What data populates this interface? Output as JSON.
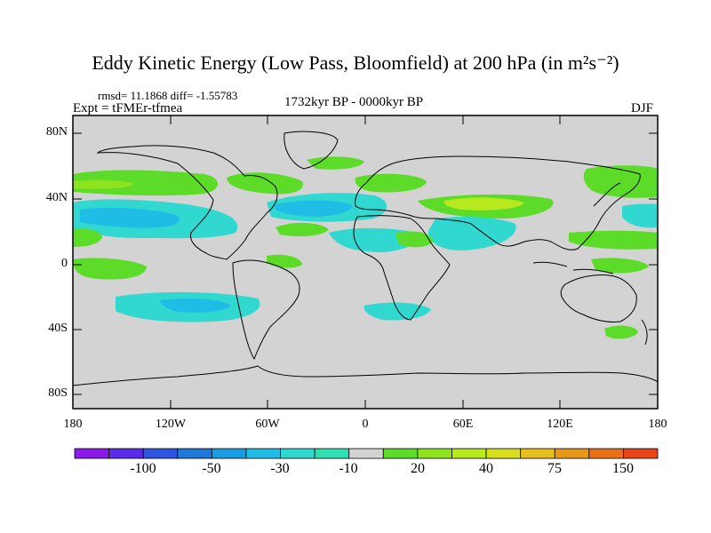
{
  "title": "Eddy Kinetic Energy (Low Pass, Bloomfield) at 200 hPa (in m²s⁻²)",
  "stats": "rmsd= 11.1868 diff= -1.55783",
  "experiment": "Expt = tFMEr-tfmea",
  "period": "1732kyr BP - 0000kyr BP",
  "season": "DJF",
  "axes": {
    "lat_labels": [
      "80N",
      "40N",
      "0",
      "40S",
      "80S"
    ],
    "lon_labels": [
      "180",
      "120W",
      "60W",
      "0",
      "60E",
      "120E",
      "180"
    ]
  },
  "colorbar": {
    "labels": [
      "-100",
      "-50",
      "-30",
      "-10",
      "20",
      "40",
      "75",
      "150"
    ],
    "colors": [
      "#8b1ae8",
      "#5a2ae8",
      "#2f55e0",
      "#1e78d8",
      "#1a9ce0",
      "#1fbde6",
      "#30d8d0",
      "#30e0b0",
      "#d3d3d3",
      "#5cdc28",
      "#8ee31e",
      "#b8e81e",
      "#d8e01e",
      "#e8c01e",
      "#e89818",
      "#e87018",
      "#e8441a"
    ]
  },
  "map_colors": {
    "background": "#d3d3d3",
    "green": "#5cdc28",
    "light_green": "#8ee31e",
    "yellow_green": "#b8e81e",
    "cyan": "#30d8d0",
    "light_cyan": "#30e0b0",
    "blue": "#1fbde6",
    "coast": "#000000"
  }
}
